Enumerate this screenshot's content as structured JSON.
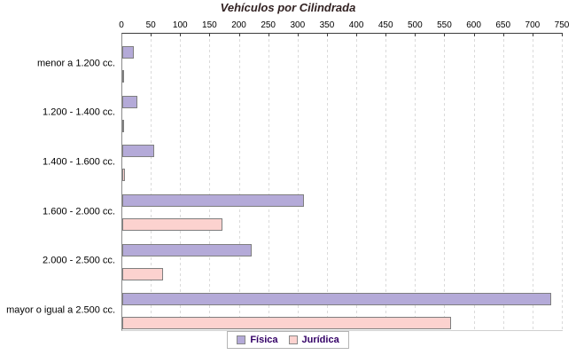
{
  "title": "Vehículos por Cilindrada",
  "colors": {
    "title_text": "#322222",
    "fisica_fill": "#b4aad8",
    "juridica_fill": "#fcd2cf",
    "bar_border": "#7f7f7f",
    "axis_line": "#3c3c3c",
    "gridline": "#dadada",
    "legend_text": "#330066"
  },
  "legend": {
    "position": "bottom",
    "items": [
      "Física",
      "Jurídica"
    ]
  },
  "chart_data": {
    "type": "bar",
    "orientation": "horizontal",
    "title": "Vehículos por Cilindrada",
    "categories": [
      "menor a 1.200 cc.",
      "1.200 - 1.400 cc.",
      "1.400 - 1.600 cc.",
      "1.600 - 2.000 cc.",
      "2.000 - 2.500 cc.",
      "mayor o igual a 2.500 cc."
    ],
    "series": [
      {
        "name": "Física",
        "color": "#b4aad8",
        "values": [
          20,
          25,
          55,
          310,
          220,
          730
        ]
      },
      {
        "name": "Jurídica",
        "color": "#fcd2cf",
        "values": [
          3,
          1,
          5,
          170,
          70,
          560
        ]
      }
    ],
    "xlim": [
      0,
      750
    ],
    "xticks": [
      0,
      50,
      100,
      150,
      200,
      250,
      300,
      350,
      400,
      450,
      500,
      550,
      600,
      650,
      700,
      750
    ],
    "xlabel": "",
    "ylabel": "",
    "grid": "vertical-dashed",
    "legend_position": "bottom"
  }
}
